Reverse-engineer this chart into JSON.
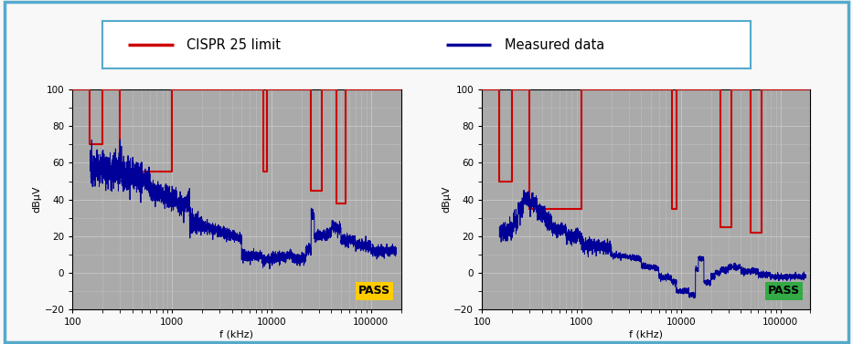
{
  "legend_items": [
    "CISPR 25 limit",
    "Measured data"
  ],
  "ylabel": "dBμV",
  "xlabel": "f (kHz)",
  "ylim": [
    -20,
    100
  ],
  "xlim_log": [
    100,
    200000
  ],
  "yticks": [
    -20,
    0,
    20,
    40,
    60,
    80,
    100
  ],
  "bg_color": "#aaaaaa",
  "outer_bg": "#f8f8f8",
  "border_color": "#55aacc",
  "pass_color_left": "#ffcc00",
  "pass_color_right": "#33aa44",
  "pass_text": "PASS",
  "cispr_color": "#cc0000",
  "measured_color": "#000099",
  "grid_color": "#cccccc",
  "plot1_cispr_x": [
    100,
    150,
    150,
    200,
    200,
    300,
    300,
    1000,
    1000,
    8200,
    8200,
    9000,
    9000,
    25000,
    25000,
    32000,
    32000,
    45000,
    45000,
    55000,
    55000,
    200000
  ],
  "plot1_cispr_y": [
    100,
    100,
    70,
    70,
    100,
    100,
    55,
    55,
    100,
    100,
    55,
    55,
    100,
    100,
    45,
    45,
    100,
    100,
    38,
    38,
    100,
    100
  ],
  "plot2_cispr_x": [
    100,
    150,
    150,
    200,
    200,
    300,
    300,
    1000,
    1000,
    8200,
    8200,
    9000,
    9000,
    25000,
    25000,
    32000,
    32000,
    50000,
    50000,
    65000,
    65000,
    200000
  ],
  "plot2_cispr_y": [
    100,
    100,
    50,
    50,
    100,
    100,
    35,
    35,
    100,
    100,
    35,
    35,
    100,
    100,
    25,
    25,
    100,
    100,
    22,
    22,
    100,
    100
  ]
}
